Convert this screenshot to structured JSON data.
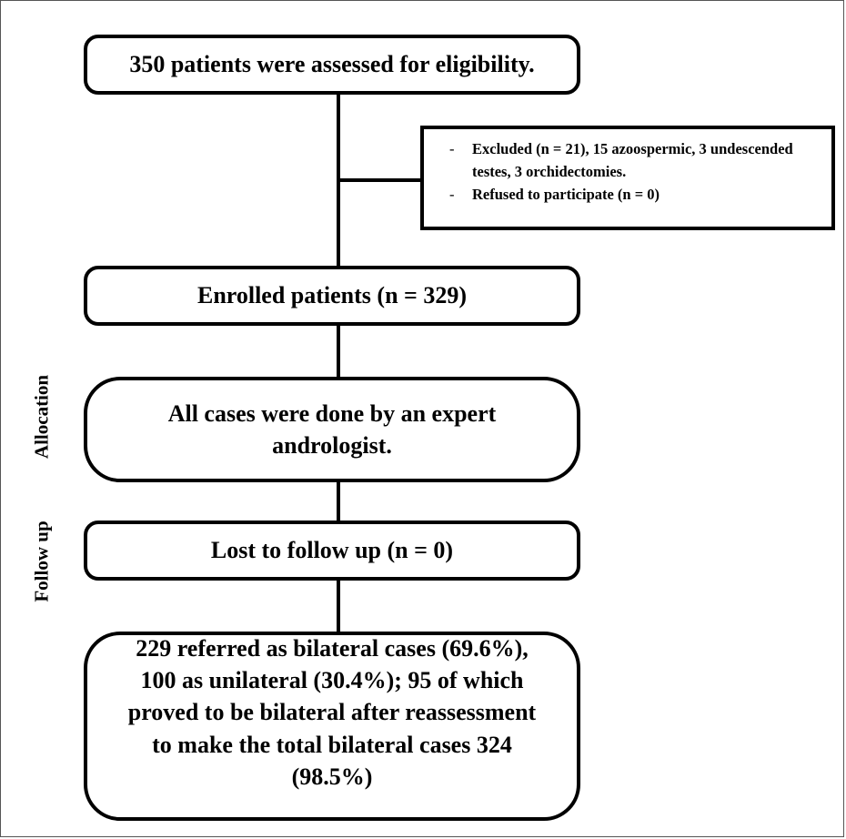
{
  "boxes": {
    "assessed": "350 patients were assessed for eligibility.",
    "excluded": [
      "Excluded (n = 21), 15 azoospermic, 3 undescended testes, 3 orchidectomies.",
      "Refused to participate (n = 0)"
    ],
    "enrolled": "Enrolled patients (n = 329)",
    "allocation_box": "All cases were done by an expert andrologist.",
    "lost": "Lost to follow up (n = 0)",
    "outcome": "229 referred as bilateral cases (69.6%), 100 as unilateral (30.4%); 95 of which proved to be bilateral after reassessment to make the total bilateral cases 324 (98.5%)"
  },
  "side_labels": {
    "allocation": "Allocation",
    "follow_up": "Follow up"
  },
  "bullet_marker": "-"
}
